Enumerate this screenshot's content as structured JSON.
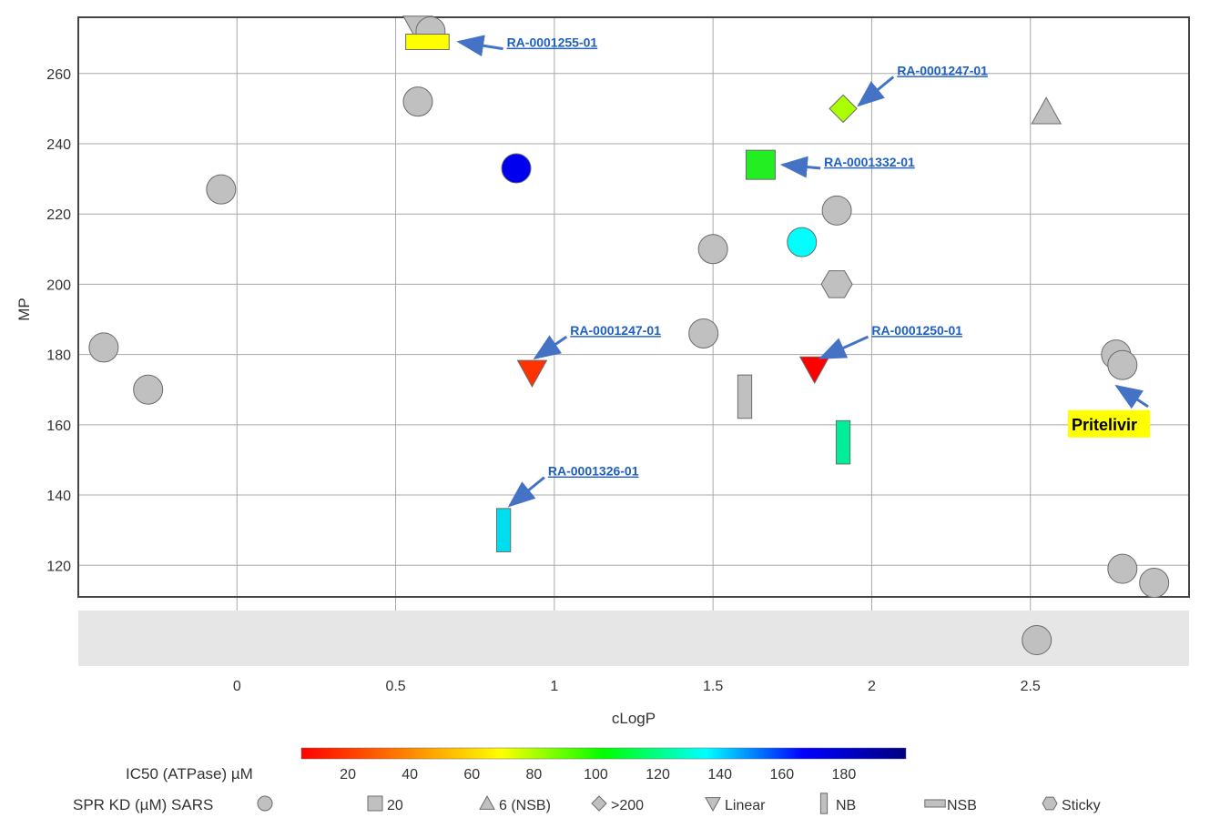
{
  "chart_data": {
    "type": "scatter",
    "xlabel": "cLogP",
    "ylabel": "MP",
    "xlim": [
      -0.5,
      3.0
    ],
    "ylim": [
      111,
      276
    ],
    "x_ticks": [
      "0",
      "0.5",
      "1",
      "1.5",
      "2",
      "2.5"
    ],
    "x_tick_values": [
      0,
      0.5,
      1,
      1.5,
      2,
      2.5
    ],
    "y_ticks": [
      "120",
      "140",
      "160",
      "180",
      "200",
      "220",
      "240",
      "260"
    ],
    "y_tick_values": [
      120,
      140,
      160,
      180,
      200,
      220,
      240,
      260
    ],
    "grid": true,
    "missing_band": "gray band below plot for compounds without MP",
    "color_legend": {
      "title": "IC50 (ATPase) µM",
      "range": [
        5,
        200
      ],
      "tick_labels": [
        "20",
        "40",
        "60",
        "80",
        "100",
        "120",
        "140",
        "160",
        "180"
      ],
      "tick_values": [
        20,
        40,
        60,
        80,
        100,
        120,
        140,
        160,
        180
      ],
      "colors": [
        "#ff0000",
        "#ff8000",
        "#ffff00",
        "#00ff00",
        "#00ffff",
        "#0000ff",
        "#000080"
      ]
    },
    "shape_legend": {
      "title": "SPR KD (µM) SARS",
      "items": [
        {
          "shape": "circle",
          "label": ""
        },
        {
          "shape": "square",
          "label": "20"
        },
        {
          "shape": "triangle-up",
          "label": "6 (NSB)"
        },
        {
          "shape": "diamond",
          "label": ">200"
        },
        {
          "shape": "triangle-down",
          "label": "Linear"
        },
        {
          "shape": "vbar",
          "label": "NB"
        },
        {
          "shape": "hbar",
          "label": "NSB"
        },
        {
          "shape": "hexagon",
          "label": "Sticky"
        }
      ]
    },
    "points": [
      {
        "x": -0.42,
        "y": 182,
        "shape": "circle",
        "color": "#c0c0c0"
      },
      {
        "x": -0.28,
        "y": 170,
        "shape": "circle",
        "color": "#c0c0c0"
      },
      {
        "x": -0.05,
        "y": 227,
        "shape": "circle",
        "color": "#c0c0c0"
      },
      {
        "x": 0.57,
        "y": 273,
        "shape": "triangle-down",
        "color": "#c0c0c0"
      },
      {
        "x": 0.61,
        "y": 272,
        "shape": "circle",
        "color": "#c0c0c0"
      },
      {
        "x": 0.57,
        "y": 252,
        "shape": "circle",
        "color": "#c0c0c0"
      },
      {
        "x": 0.88,
        "y": 233,
        "shape": "circle",
        "color": "#0000ee"
      },
      {
        "x": 1.47,
        "y": 186,
        "shape": "circle",
        "color": "#c0c0c0"
      },
      {
        "x": 1.5,
        "y": 210,
        "shape": "circle",
        "color": "#c0c0c0"
      },
      {
        "x": 1.78,
        "y": 212,
        "shape": "circle",
        "color": "#00ffff"
      },
      {
        "x": 1.89,
        "y": 221,
        "shape": "circle",
        "color": "#c0c0c0"
      },
      {
        "x": 1.89,
        "y": 200,
        "shape": "hexagon",
        "color": "#c0c0c0"
      },
      {
        "x": 2.55,
        "y": 249,
        "shape": "triangle-up",
        "color": "#c0c0c0"
      },
      {
        "x": 2.77,
        "y": 180,
        "shape": "circle",
        "color": "#c0c0c0"
      },
      {
        "x": 2.79,
        "y": 177,
        "shape": "circle",
        "color": "#c0c0c0"
      },
      {
        "x": 2.79,
        "y": 119,
        "shape": "circle",
        "color": "#c0c0c0"
      },
      {
        "x": 2.89,
        "y": 115,
        "shape": "circle",
        "color": "#c0c0c0"
      },
      {
        "x": 2.52,
        "y": null,
        "shape": "circle",
        "color": "#c0c0c0"
      },
      {
        "x": 0.6,
        "y": 269,
        "shape": "hbar",
        "color": "#ffff00"
      },
      {
        "x": 1.91,
        "y": 250,
        "shape": "diamond",
        "color": "#aaff00"
      },
      {
        "x": 1.65,
        "y": 234,
        "shape": "square",
        "color": "#22ee22"
      },
      {
        "x": 0.93,
        "y": 175,
        "shape": "triangle-down",
        "color": "#ff3300"
      },
      {
        "x": 1.82,
        "y": 176,
        "shape": "triangle-down",
        "color": "#ff0000"
      },
      {
        "x": 1.6,
        "y": 168,
        "shape": "vbar",
        "color": "#c0c0c0"
      },
      {
        "x": 1.91,
        "y": 155,
        "shape": "vbar",
        "color": "#00ee99"
      },
      {
        "x": 0.84,
        "y": 130,
        "shape": "vbar",
        "color": "#00ddee"
      }
    ],
    "annotations": [
      {
        "text": "RA-0001255-01",
        "target": [
          0.7,
          269
        ],
        "label_at": [
          0.85,
          266
        ]
      },
      {
        "text": "RA-0001247-01",
        "target": [
          1.96,
          251
        ],
        "label_at": [
          2.08,
          258
        ]
      },
      {
        "text": "RA-0001332-01",
        "target": [
          1.72,
          234
        ],
        "label_at": [
          1.85,
          232
        ]
      },
      {
        "text": "RA-0001247-01",
        "target": [
          0.94,
          179
        ],
        "label_at": [
          1.05,
          184
        ]
      },
      {
        "text": "RA-0001250-01",
        "target": [
          1.84,
          179
        ],
        "label_at": [
          2.0,
          184
        ]
      },
      {
        "text": "RA-0001326-01",
        "target": [
          0.86,
          137
        ],
        "label_at": [
          0.98,
          144
        ]
      }
    ],
    "callout": {
      "text": "Pritelivir",
      "target": [
        2.79,
        172
      ],
      "label_at": [
        2.63,
        160
      ]
    }
  }
}
